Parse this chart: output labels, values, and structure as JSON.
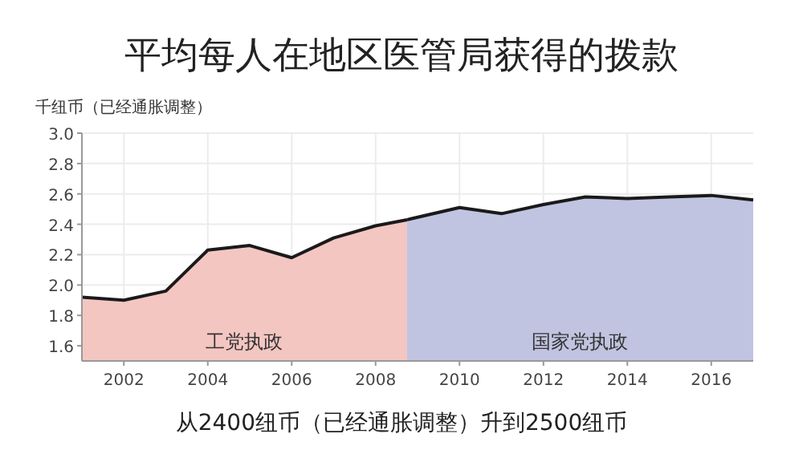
{
  "chart_data": {
    "type": "area",
    "title": "平均每人在地区医管局获得的拨款",
    "ylabel": "千纽币（已经通胀调整）",
    "annotations": [
      "从2400纽币（已经通胀调整）升到2500纽币"
    ],
    "xlim": [
      2001,
      2017
    ],
    "ylim": [
      1.5,
      3.0
    ],
    "xticks": [
      2002,
      2004,
      2006,
      2008,
      2010,
      2012,
      2014,
      2016
    ],
    "yticks": [
      {
        "value": 1.6,
        "label": "1.6"
      },
      {
        "value": 1.8,
        "label": "1.8"
      },
      {
        "value": 2.0,
        "label": "2.0"
      },
      {
        "value": 2.2,
        "label": "2.2"
      },
      {
        "value": 2.4,
        "label": "2.4"
      },
      {
        "value": 2.6,
        "label": "2.6"
      },
      {
        "value": 2.8,
        "label": "2.8"
      },
      {
        "value": 3.0,
        "label": "3.0"
      }
    ],
    "grid": true,
    "series": [
      {
        "name": "工党执政",
        "color": "#f4c6c2",
        "x": [
          2001,
          2002,
          2003,
          2004,
          2005,
          2006,
          2007,
          2008,
          2008.75
        ],
        "values": [
          1.92,
          1.9,
          1.96,
          2.23,
          2.26,
          2.18,
          2.31,
          2.39,
          2.43
        ]
      },
      {
        "name": "国家党执政",
        "color": "#c0c4e0",
        "x": [
          2008.75,
          2010,
          2011,
          2012,
          2013,
          2014,
          2015,
          2016,
          2017
        ],
        "values": [
          2.43,
          2.51,
          2.47,
          2.53,
          2.58,
          2.57,
          2.58,
          2.59,
          2.56
        ]
      }
    ]
  }
}
